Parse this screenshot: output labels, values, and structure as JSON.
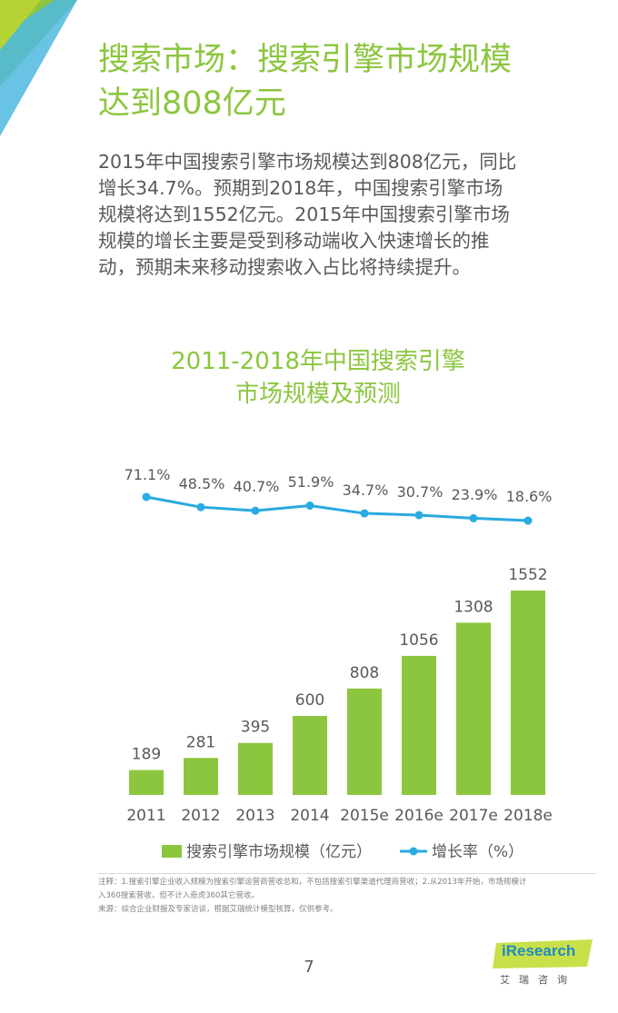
{
  "page": {
    "title_line1": "搜索市场：搜索引擎市场规模",
    "title_line2": "达到808亿元",
    "intro_lines": [
      "2015年中国搜索引擎市场规模达到808亿元，同比",
      "增长34.7%。预期到2018年，中国搜索引擎市场",
      "规模将达到1552亿元。2015年中国搜索引擎市场",
      "规模的增长主要是受到移动端收入快速增长的推",
      "动，预期未来移动搜索收入占比将持续提升。"
    ],
    "note1": "注释：1.搜索引擎企业收入规模为搜索引擎运营商营收总和，不包括搜索引擎渠道代理商营收；2.从2013年开始，市场规模计",
    "note2": "入360搜索营收，但不计入奇虎360其它营收。",
    "source": "来源：综合企业财报及专家访谈，根据艾瑞统计模型核算，仅供参考。",
    "page_number": "7",
    "logo_name": "iResearch",
    "logo_subtitle": "艾瑞咨询",
    "colors": {
      "accent_green": "#8cc63f",
      "line_blue": "#29aae1",
      "text_gray": "#595959"
    }
  },
  "chart_data": {
    "type": "bar",
    "title_line1": "2011-2018年中国搜索引擎",
    "title_line2": "市场规模及预测",
    "categories": [
      "2011",
      "2012",
      "2013",
      "2014",
      "2015e",
      "2016e",
      "2017e",
      "2018e"
    ],
    "series": [
      {
        "name": "搜索引擎市场规模（亿元）",
        "type": "bar",
        "values": [
          189,
          281,
          395,
          600,
          808,
          1056,
          1308,
          1552
        ]
      },
      {
        "name": "增长率（%）",
        "type": "line",
        "values": [
          71.1,
          48.5,
          40.7,
          51.9,
          34.7,
          30.7,
          23.9,
          18.6
        ]
      }
    ],
    "bar_labels": [
      "189",
      "281",
      "395",
      "600",
      "808",
      "1056",
      "1308",
      "1552"
    ],
    "line_labels": [
      "71.1%",
      "48.5%",
      "40.7%",
      "51.9%",
      "34.7%",
      "30.7%",
      "23.9%",
      "18.6%"
    ],
    "legend_position": "bottom",
    "grid": false
  }
}
